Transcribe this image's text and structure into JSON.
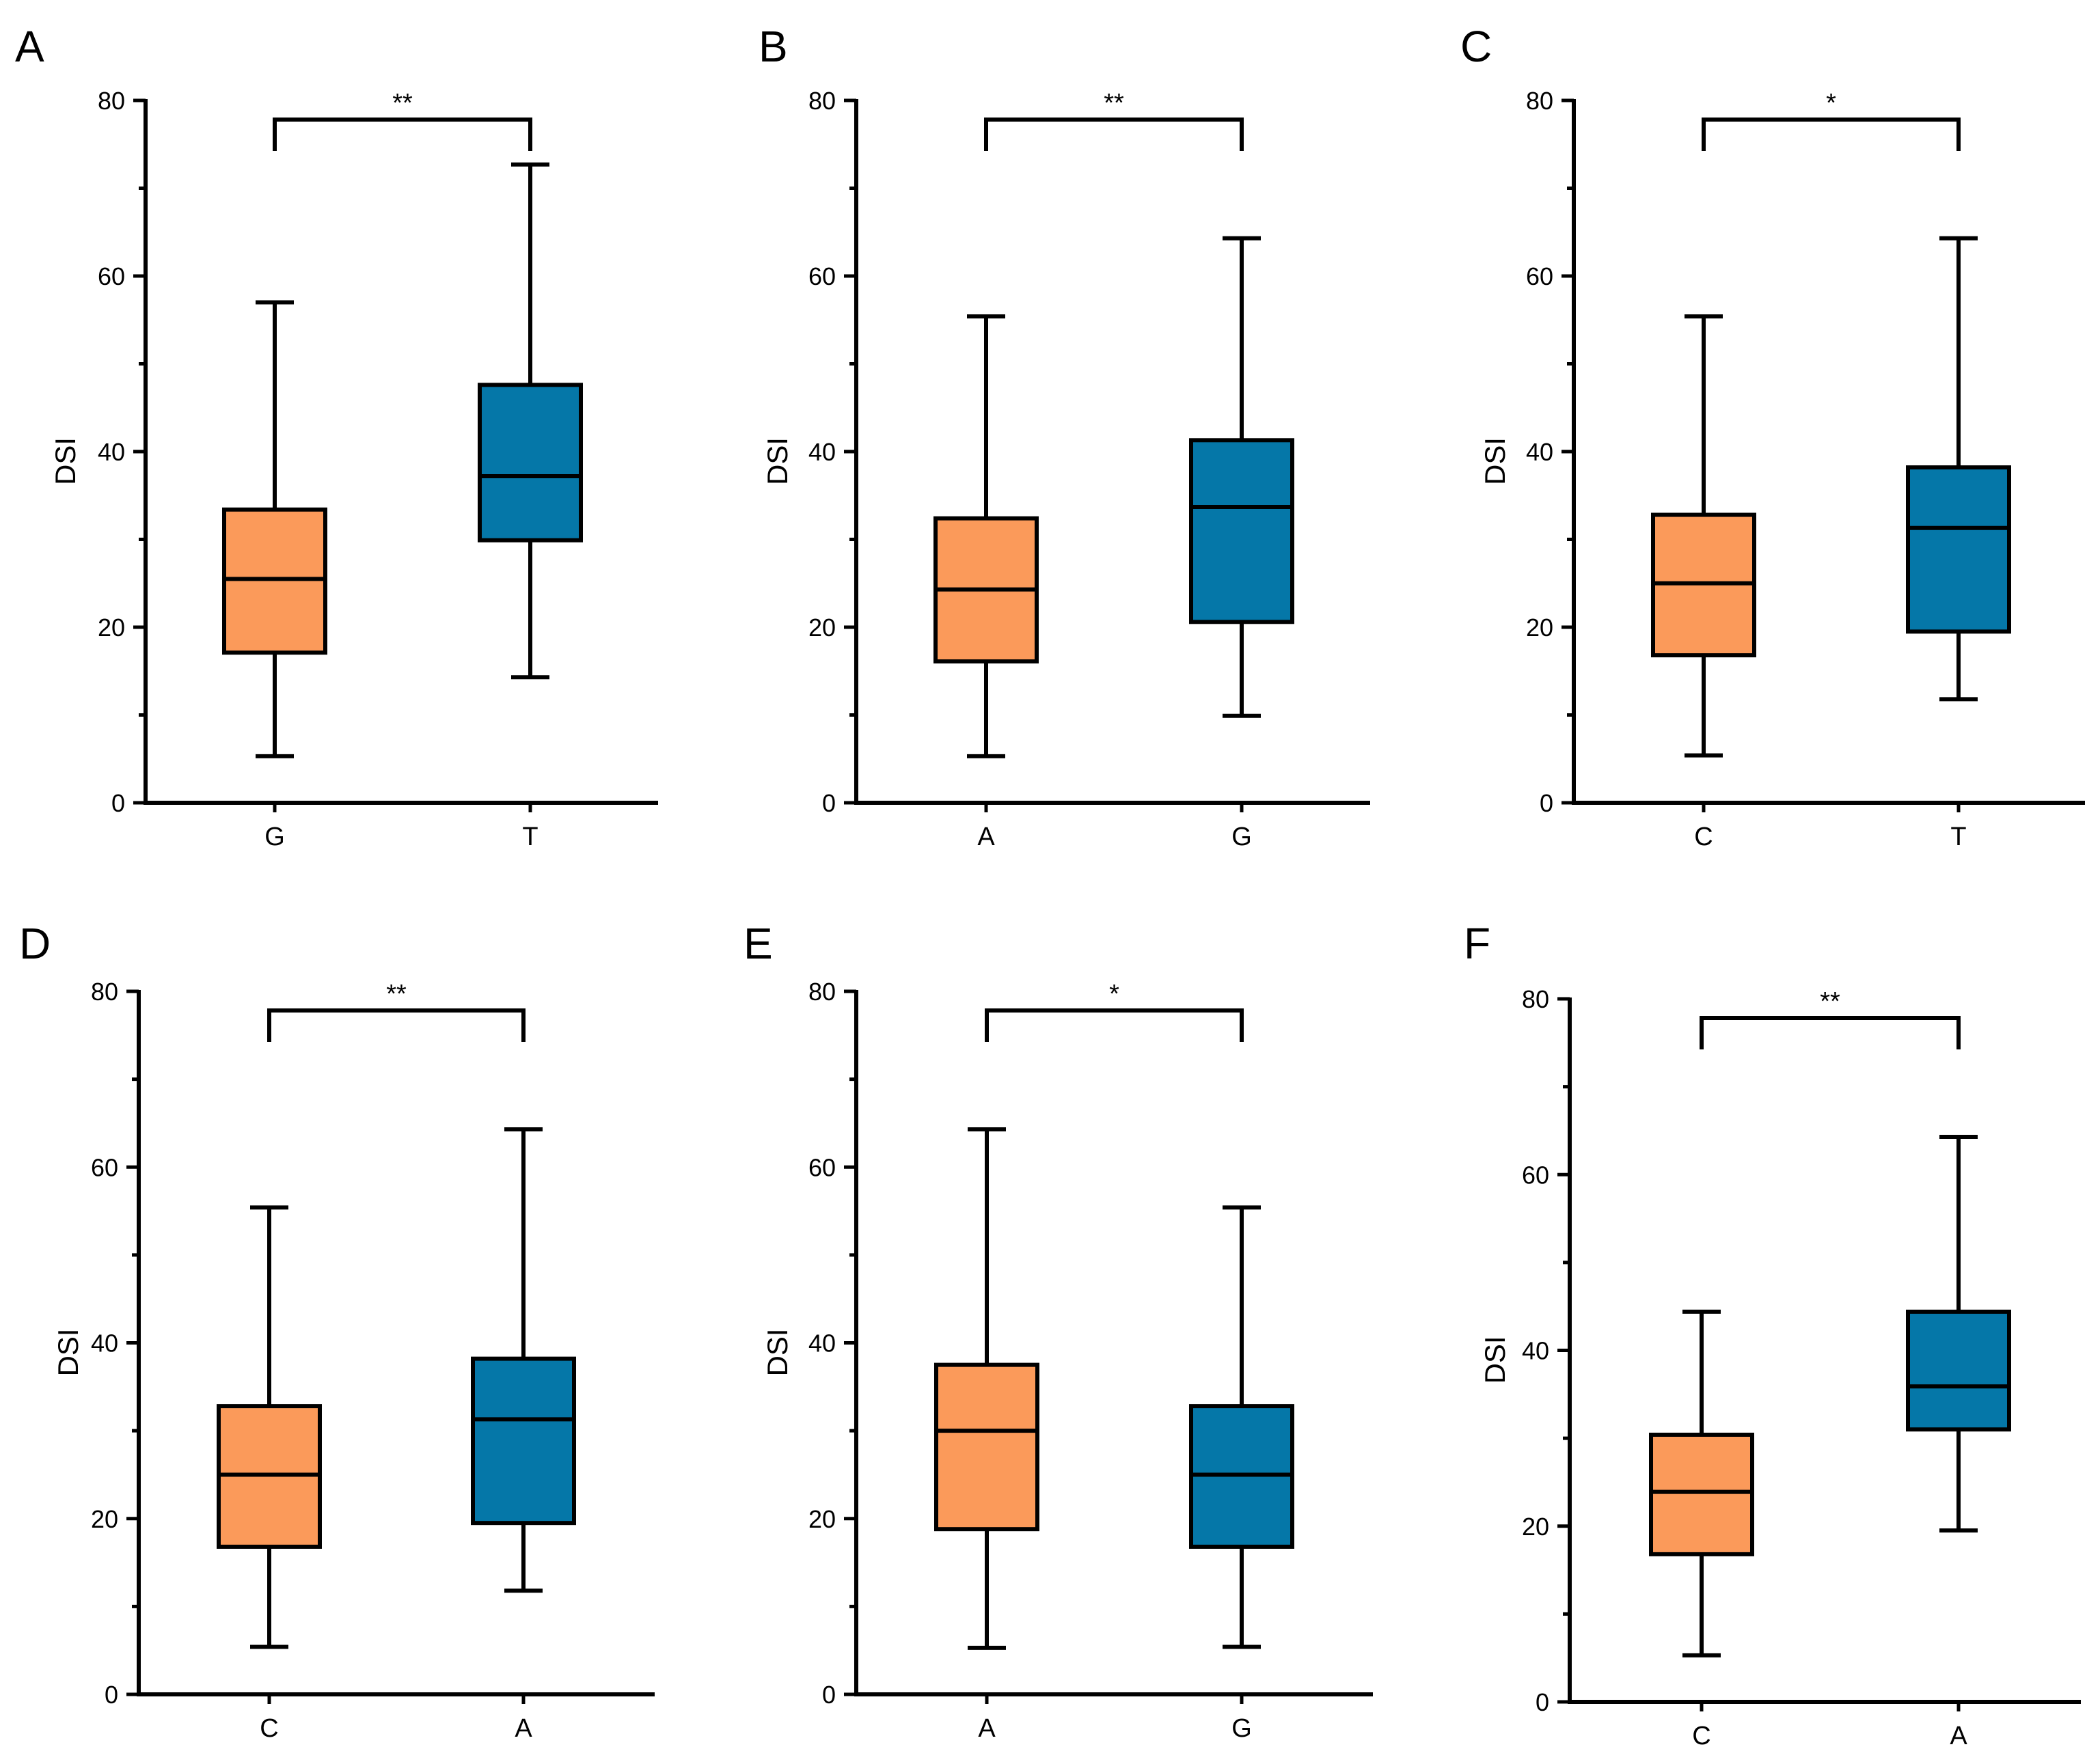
{
  "colors": {
    "orange": "#fb9a5a",
    "blue": "#0577a8",
    "line": "#000000"
  },
  "chart_data": [
    {
      "panel": "A",
      "type": "box",
      "ylabel": "DSI",
      "ylim": [
        0,
        80
      ],
      "yticks": [
        "0",
        "20",
        "40",
        "60",
        "80"
      ],
      "categories": [
        "G",
        "T"
      ],
      "boxes": [
        {
          "min": 5.3,
          "q1": 17.1,
          "median": 25.5,
          "q3": 33.4,
          "max": 57.0,
          "color": "orange"
        },
        {
          "min": 14.3,
          "q1": 29.9,
          "median": 37.2,
          "q3": 47.6,
          "max": 72.7,
          "color": "blue"
        }
      ],
      "significance": "**"
    },
    {
      "panel": "B",
      "type": "box",
      "ylabel": "DSI",
      "ylim": [
        0,
        80
      ],
      "yticks": [
        "0",
        "20",
        "40",
        "60",
        "80"
      ],
      "categories": [
        "A",
        "G"
      ],
      "boxes": [
        {
          "min": 5.3,
          "q1": 16.1,
          "median": 24.3,
          "q3": 32.4,
          "max": 55.4,
          "color": "orange"
        },
        {
          "min": 9.9,
          "q1": 20.6,
          "median": 33.7,
          "q3": 41.3,
          "max": 64.3,
          "color": "blue"
        }
      ],
      "significance": "**"
    },
    {
      "panel": "C",
      "type": "box",
      "ylabel": "DSI",
      "ylim": [
        0,
        80
      ],
      "yticks": [
        "0",
        "20",
        "40",
        "60",
        "80"
      ],
      "categories": [
        "C",
        "T"
      ],
      "boxes": [
        {
          "min": 5.4,
          "q1": 16.8,
          "median": 25.0,
          "q3": 32.8,
          "max": 55.4,
          "color": "orange"
        },
        {
          "min": 11.8,
          "q1": 19.5,
          "median": 31.3,
          "q3": 38.2,
          "max": 64.3,
          "color": "blue"
        }
      ],
      "significance": "*"
    },
    {
      "panel": "D",
      "type": "box",
      "ylabel": "DSI",
      "ylim": [
        0,
        80
      ],
      "yticks": [
        "0",
        "20",
        "40",
        "60",
        "80"
      ],
      "categories": [
        "C",
        "A"
      ],
      "boxes": [
        {
          "min": 5.4,
          "q1": 16.8,
          "median": 25.0,
          "q3": 32.8,
          "max": 55.4,
          "color": "orange"
        },
        {
          "min": 11.8,
          "q1": 19.5,
          "median": 31.3,
          "q3": 38.2,
          "max": 64.3,
          "color": "blue"
        }
      ],
      "significance": "**"
    },
    {
      "panel": "E",
      "type": "box",
      "ylabel": "DSI",
      "ylim": [
        0,
        80
      ],
      "yticks": [
        "0",
        "20",
        "40",
        "60",
        "80"
      ],
      "categories": [
        "A",
        "G"
      ],
      "boxes": [
        {
          "min": 5.3,
          "q1": 18.8,
          "median": 30.0,
          "q3": 37.5,
          "max": 64.3,
          "color": "orange"
        },
        {
          "min": 5.4,
          "q1": 16.8,
          "median": 25.0,
          "q3": 32.8,
          "max": 55.4,
          "color": "blue"
        }
      ],
      "significance": "*"
    },
    {
      "panel": "F",
      "type": "box",
      "ylabel": "DSI",
      "ylim": [
        0,
        80
      ],
      "yticks": [
        "0",
        "20",
        "40",
        "60",
        "80"
      ],
      "categories": [
        "C",
        "A"
      ],
      "boxes": [
        {
          "min": 5.3,
          "q1": 16.8,
          "median": 23.9,
          "q3": 30.4,
          "max": 44.4,
          "color": "orange"
        },
        {
          "min": 19.5,
          "q1": 31.0,
          "median": 35.9,
          "q3": 44.4,
          "max": 64.3,
          "color": "blue"
        }
      ],
      "significance": "**"
    }
  ]
}
